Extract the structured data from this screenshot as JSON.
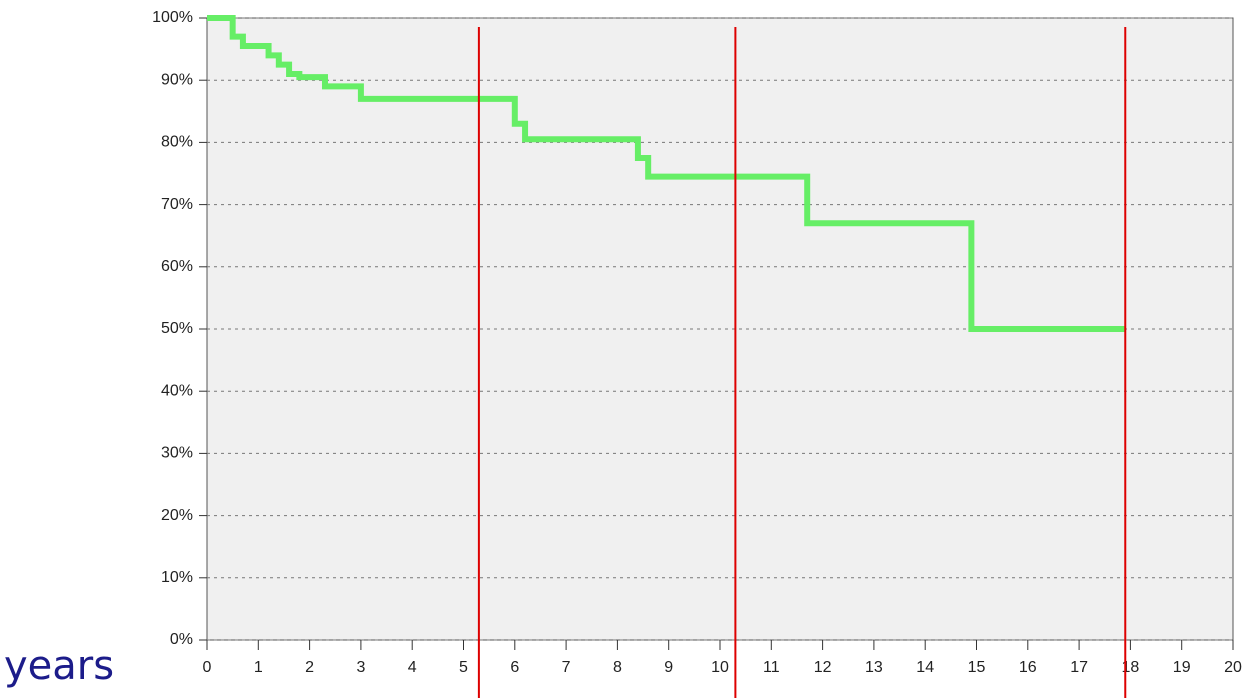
{
  "chart_data": {
    "type": "step",
    "x_label": "years",
    "xlim": [
      0,
      20
    ],
    "xticks": [
      0,
      1,
      2,
      3,
      4,
      5,
      6,
      7,
      8,
      9,
      10,
      11,
      12,
      13,
      14,
      15,
      16,
      17,
      18,
      19,
      20
    ],
    "ylim": [
      0,
      100
    ],
    "yticks": [
      {
        "value": 0,
        "label": "0%"
      },
      {
        "value": 10,
        "label": "10%"
      },
      {
        "value": 20,
        "label": "20%"
      },
      {
        "value": 30,
        "label": "30%"
      },
      {
        "value": 40,
        "label": "40%"
      },
      {
        "value": 50,
        "label": "50%"
      },
      {
        "value": 60,
        "label": "60%"
      },
      {
        "value": 70,
        "label": "70%"
      },
      {
        "value": 80,
        "label": "80%"
      },
      {
        "value": 90,
        "label": "90%"
      },
      {
        "value": 100,
        "label": "100%"
      }
    ],
    "grid": true,
    "series": [
      {
        "color": "#66ee66",
        "x": [
          0,
          0.5,
          0.7,
          1.2,
          1.4,
          1.6,
          1.8,
          2.3,
          3.0,
          6.0,
          6.2,
          8.4,
          8.6,
          11.7,
          14.9,
          17.9
        ],
        "values": [
          100,
          97,
          95.5,
          94,
          92.5,
          91,
          90.5,
          89,
          87,
          83,
          80.5,
          77.5,
          74.5,
          67,
          50,
          50
        ]
      }
    ],
    "vertical_lines": {
      "color": "#dd0000",
      "x": [
        5.3,
        10.3,
        17.9
      ]
    }
  }
}
